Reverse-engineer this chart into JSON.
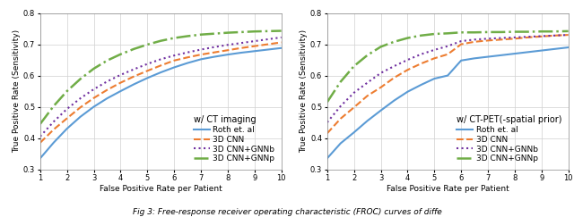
{
  "title_left": "w/ CT imaging",
  "title_right": "w/ CT-PET(-spatial prior)",
  "ylabel": "True Positive Rate (Sensitivity)",
  "xlabel": "False Positive Rate per Patient",
  "xlim": [
    1,
    10
  ],
  "ylim": [
    0.3,
    0.8
  ],
  "yticks": [
    0.3,
    0.4,
    0.5,
    0.6,
    0.7,
    0.8
  ],
  "xticks": [
    1,
    2,
    3,
    4,
    5,
    6,
    7,
    8,
    9,
    10
  ],
  "legend_labels": [
    "Roth et. al",
    "3D CNN",
    "3D CNN+GNNb",
    "3D CNN+GNNp"
  ],
  "colors": [
    "#5b9bd5",
    "#ed7d31",
    "#7030a0",
    "#70ad47"
  ],
  "linestyles": [
    "solid",
    "dashed",
    "dotted",
    "dashdot"
  ],
  "linewidths": [
    1.5,
    1.5,
    1.5,
    1.8
  ],
  "left_x": [
    1.0,
    1.5,
    2.0,
    2.5,
    3.0,
    3.5,
    4.0,
    4.5,
    5.0,
    5.5,
    6.0,
    6.5,
    7.0,
    7.5,
    8.0,
    8.5,
    9.0,
    9.5,
    10.0
  ],
  "left_roth": [
    0.335,
    0.385,
    0.43,
    0.468,
    0.5,
    0.527,
    0.55,
    0.572,
    0.592,
    0.61,
    0.626,
    0.64,
    0.652,
    0.66,
    0.667,
    0.673,
    0.678,
    0.683,
    0.688
  ],
  "left_cnn": [
    0.385,
    0.427,
    0.463,
    0.498,
    0.528,
    0.554,
    0.577,
    0.597,
    0.615,
    0.632,
    0.648,
    0.658,
    0.667,
    0.674,
    0.681,
    0.688,
    0.694,
    0.7,
    0.706
  ],
  "left_gnnb": [
    0.405,
    0.452,
    0.493,
    0.527,
    0.556,
    0.581,
    0.602,
    0.62,
    0.637,
    0.652,
    0.664,
    0.674,
    0.683,
    0.691,
    0.698,
    0.704,
    0.71,
    0.716,
    0.722
  ],
  "left_gnnp": [
    0.445,
    0.502,
    0.55,
    0.589,
    0.622,
    0.648,
    0.668,
    0.685,
    0.699,
    0.711,
    0.72,
    0.726,
    0.731,
    0.734,
    0.737,
    0.739,
    0.741,
    0.742,
    0.743
  ],
  "right_x": [
    1.0,
    1.5,
    2.0,
    2.5,
    3.0,
    3.5,
    4.0,
    4.5,
    5.0,
    5.5,
    6.0,
    6.5,
    7.0,
    7.5,
    8.0,
    8.5,
    9.0,
    9.5,
    10.0
  ],
  "right_roth": [
    0.335,
    0.383,
    0.418,
    0.455,
    0.488,
    0.52,
    0.548,
    0.57,
    0.59,
    0.6,
    0.648,
    0.655,
    0.66,
    0.665,
    0.67,
    0.675,
    0.68,
    0.685,
    0.69
  ],
  "right_cnn": [
    0.415,
    0.462,
    0.498,
    0.535,
    0.562,
    0.593,
    0.618,
    0.638,
    0.655,
    0.668,
    0.7,
    0.708,
    0.712,
    0.715,
    0.718,
    0.722,
    0.725,
    0.728,
    0.73
  ],
  "right_gnnb": [
    0.45,
    0.502,
    0.545,
    0.577,
    0.608,
    0.63,
    0.65,
    0.668,
    0.682,
    0.694,
    0.71,
    0.715,
    0.718,
    0.72,
    0.722,
    0.724,
    0.726,
    0.728,
    0.73
  ],
  "right_gnnp": [
    0.515,
    0.58,
    0.63,
    0.665,
    0.692,
    0.708,
    0.72,
    0.728,
    0.733,
    0.735,
    0.738,
    0.738,
    0.739,
    0.739,
    0.74,
    0.74,
    0.741,
    0.741,
    0.742
  ],
  "bg_color": "#ffffff",
  "grid_color": "#d0d0d0",
  "label_fontsize": 6.5,
  "tick_fontsize": 6.0,
  "legend_fontsize": 6.5,
  "legend_title_fontsize": 7.0,
  "caption": "Fig 3: Free-response receiver operating characteristic (FROC) curves of diffe"
}
